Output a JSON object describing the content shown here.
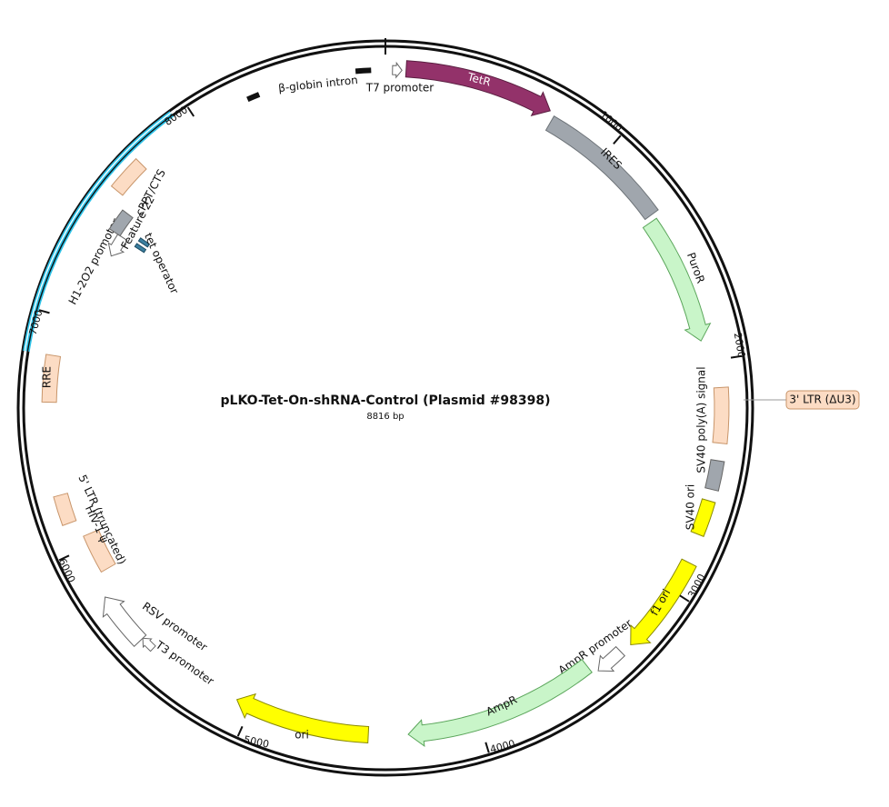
{
  "title": "pLKO-Tet-On-shRNA-Control (Plasmid #98398)",
  "length": "8816 bp",
  "ticks": [
    "1000",
    "2000",
    "3000",
    "4000",
    "5000",
    "6000",
    "7000",
    "8000"
  ],
  "features": [
    "TetR",
    "IRES",
    "PuroR",
    "SV40 poly(A) signal",
    "3' LTR (ΔU3)",
    "SV40 ori",
    "f1 ori",
    "AmpR promoter",
    "AmpR",
    "ori",
    "T3 promoter",
    "RSV promoter",
    "5' LTR (truncated)",
    "HIV-1 ψ",
    "RRE",
    "H1-2O2 promoter",
    "Feature 22",
    "cPPT/CTS",
    "tet operator",
    "β-globin intron",
    "T7 promoter"
  ]
}
